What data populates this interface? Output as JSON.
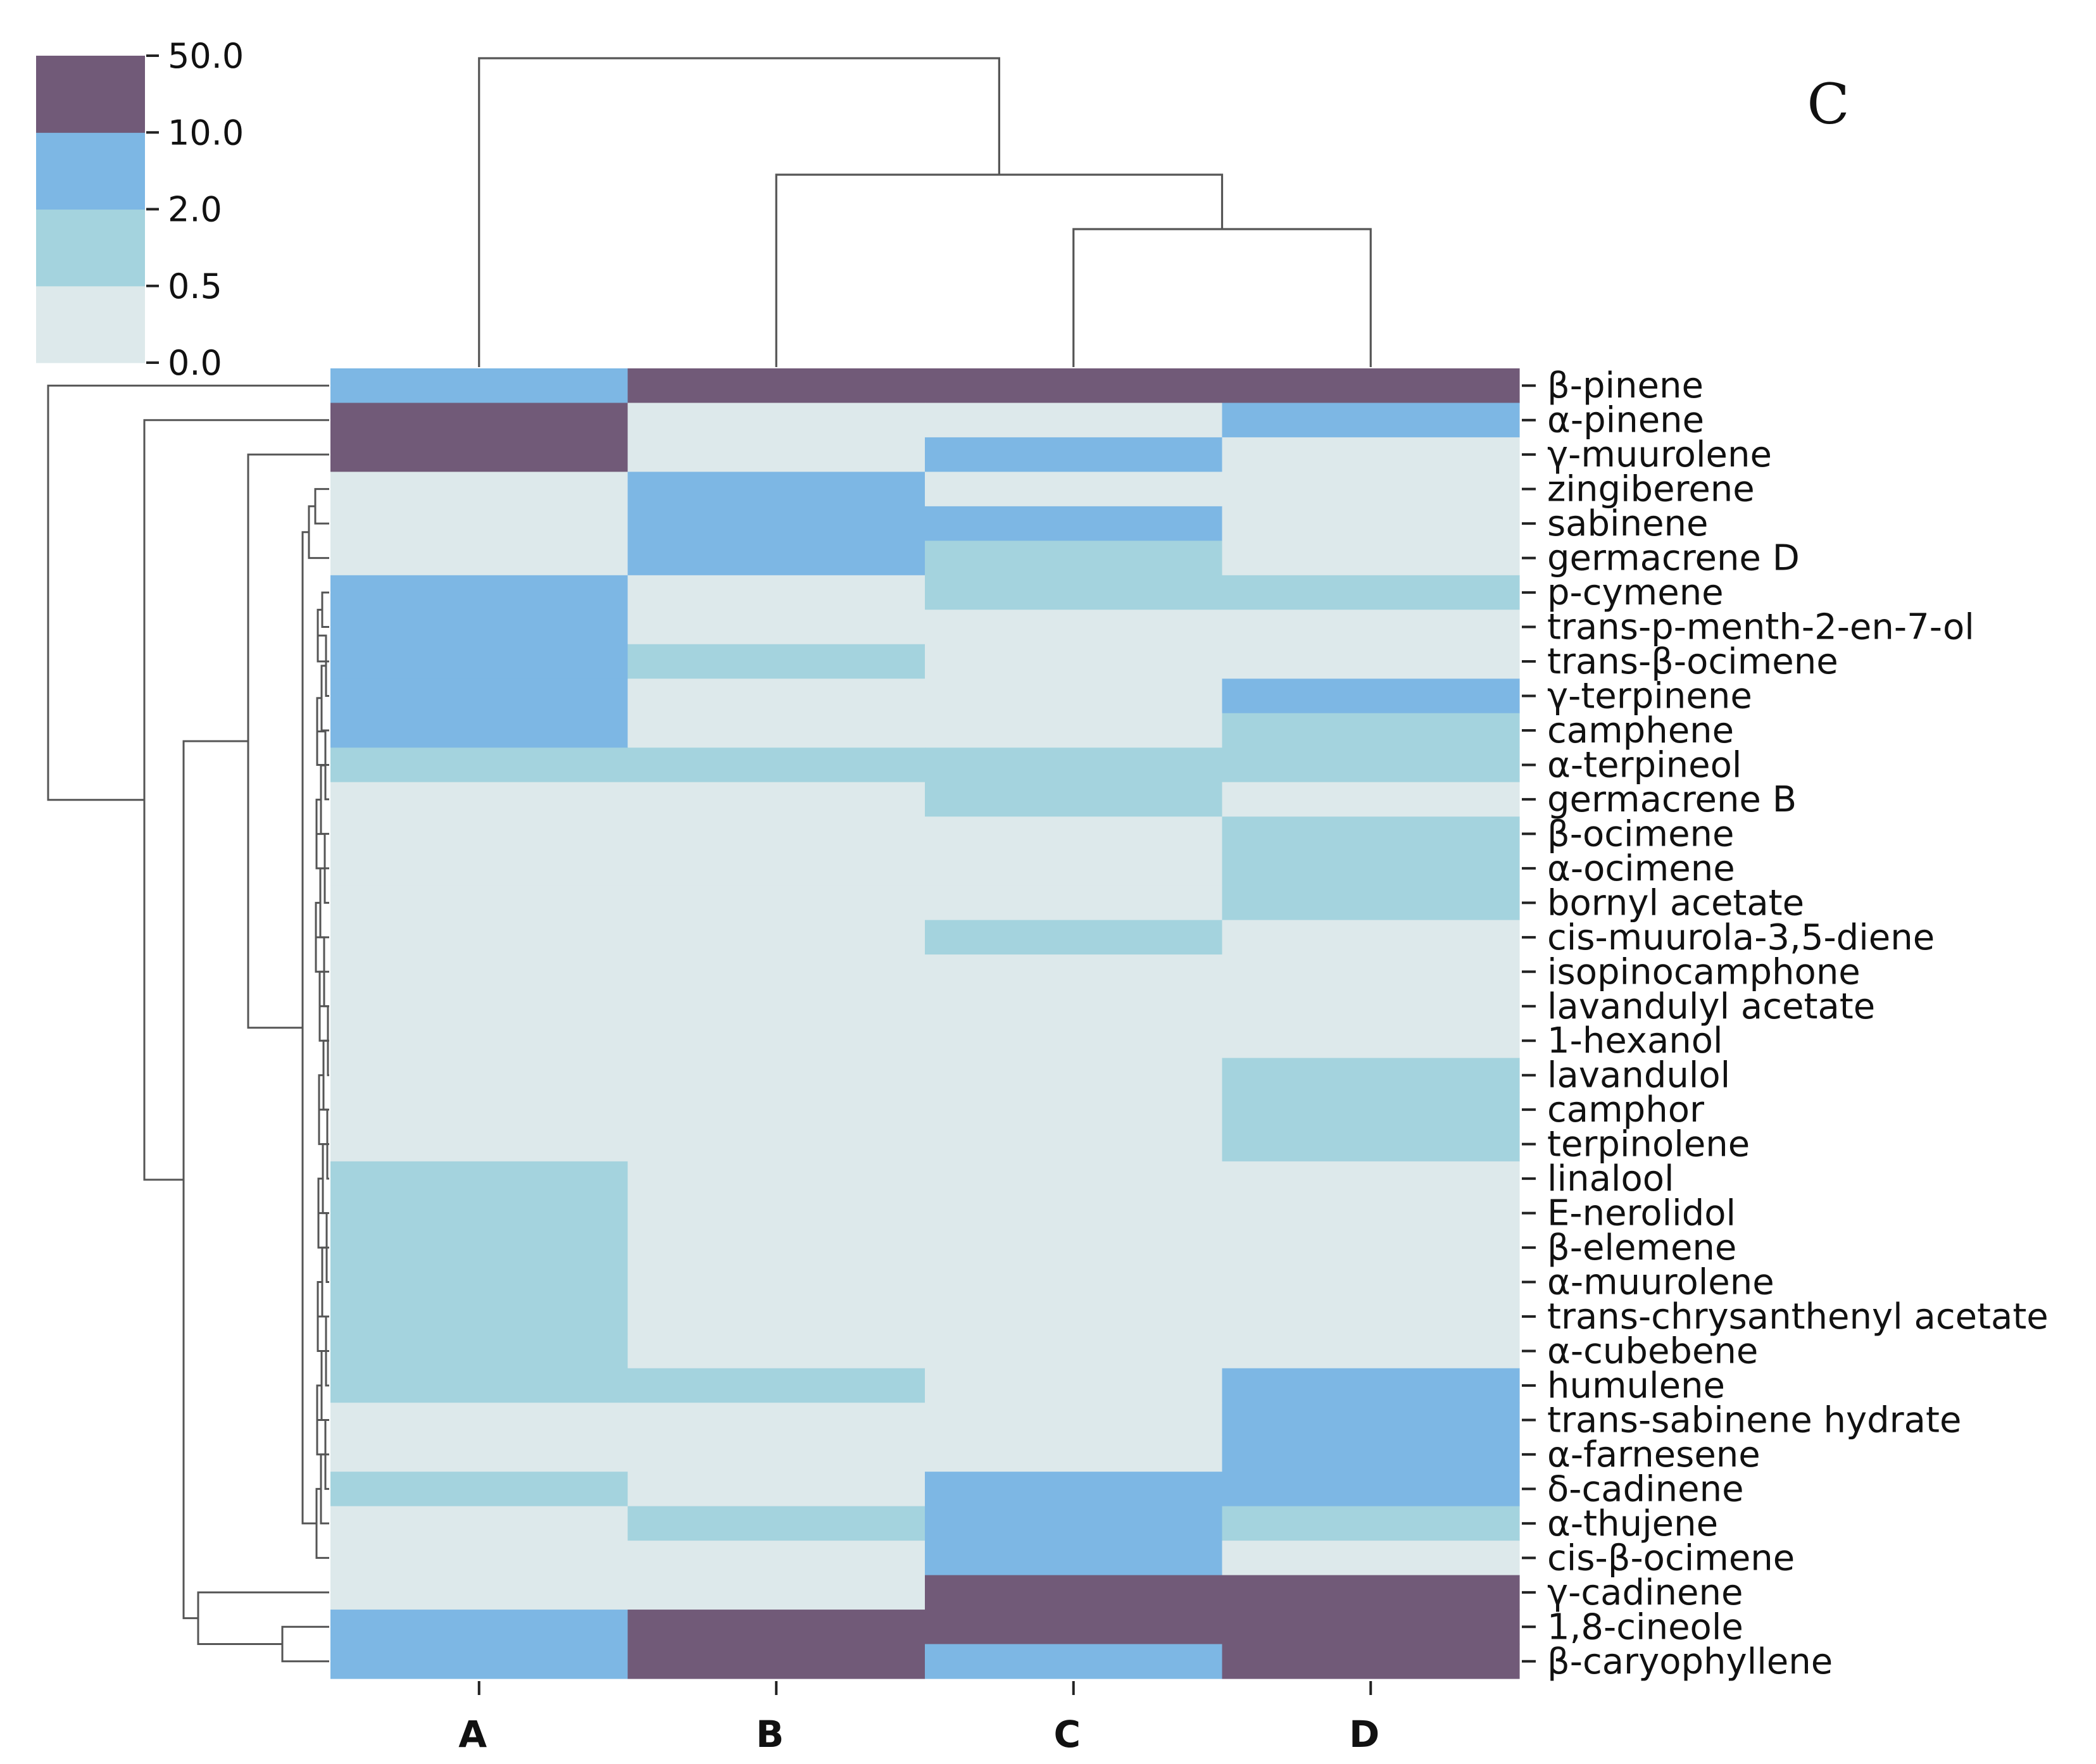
{
  "chart_data": {
    "type": "heatmap",
    "title": "",
    "panel_letter": "C",
    "xlabel": "",
    "ylabel": "",
    "columns": [
      "A",
      "B",
      "C",
      "D"
    ],
    "rows": [
      "β-pinene",
      "α-pinene",
      "γ-muurolene",
      "zingiberene",
      "sabinene",
      "germacrene D",
      "p-cymene",
      "trans-p-menth-2-en-7-ol",
      "trans-β-ocimene",
      "γ-terpinene",
      "camphene",
      "α-terpineol",
      "germacrene B",
      "β-ocimene",
      "α-ocimene",
      "bornyl acetate",
      "cis-muurola-3,5-diene",
      "isopinocamphone",
      "lavandulyl acetate",
      "1-hexanol",
      "lavandulol",
      "camphor",
      "terpinolene",
      "linalool",
      "E-nerolidol",
      "β-elemene",
      "α-muurolene",
      "trans-chrysanthenyl acetate",
      "α-cubebene",
      "humulene",
      "trans-sabinene hydrate",
      "α-farnesene",
      "δ-cadinene",
      "α-thujene",
      "cis-β-ocimene",
      "γ-cadinene",
      "1,8-cineole",
      "β-caryophyllene"
    ],
    "value_bins": [
      "0.0–0.5",
      "0.5–2.0",
      "2.0–10.0",
      "10.0–50.0"
    ],
    "bin_colors": [
      "#dde9eb",
      "#a4d3de",
      "#7db7e4",
      "#715a78"
    ],
    "matrix_bins": [
      [
        2,
        3,
        3,
        3
      ],
      [
        3,
        0,
        0,
        2
      ],
      [
        3,
        0,
        2,
        0
      ],
      [
        0,
        2,
        0,
        0
      ],
      [
        0,
        2,
        2,
        0
      ],
      [
        0,
        2,
        1,
        0
      ],
      [
        2,
        0,
        1,
        1
      ],
      [
        2,
        0,
        0,
        0
      ],
      [
        2,
        1,
        0,
        0
      ],
      [
        2,
        0,
        0,
        2
      ],
      [
        2,
        0,
        0,
        1
      ],
      [
        1,
        1,
        1,
        1
      ],
      [
        0,
        0,
        1,
        0
      ],
      [
        0,
        0,
        0,
        1
      ],
      [
        0,
        0,
        0,
        1
      ],
      [
        0,
        0,
        0,
        1
      ],
      [
        0,
        0,
        1,
        0
      ],
      [
        0,
        0,
        0,
        0
      ],
      [
        0,
        0,
        0,
        0
      ],
      [
        0,
        0,
        0,
        0
      ],
      [
        0,
        0,
        0,
        1
      ],
      [
        0,
        0,
        0,
        1
      ],
      [
        0,
        0,
        0,
        1
      ],
      [
        1,
        0,
        0,
        0
      ],
      [
        1,
        0,
        0,
        0
      ],
      [
        1,
        0,
        0,
        0
      ],
      [
        1,
        0,
        0,
        0
      ],
      [
        1,
        0,
        0,
        0
      ],
      [
        1,
        0,
        0,
        0
      ],
      [
        1,
        1,
        0,
        2
      ],
      [
        0,
        0,
        0,
        2
      ],
      [
        0,
        0,
        0,
        2
      ],
      [
        1,
        0,
        2,
        2
      ],
      [
        0,
        1,
        2,
        1
      ],
      [
        0,
        0,
        2,
        0
      ],
      [
        0,
        0,
        3,
        3
      ],
      [
        2,
        3,
        3,
        3
      ],
      [
        2,
        3,
        2,
        3
      ]
    ],
    "colorbar": {
      "ticks": [
        "0.0",
        "0.5",
        "2.0",
        "10.0",
        "50.0"
      ],
      "colors": [
        "#dde9eb",
        "#a4d3de",
        "#7db7e4",
        "#715a78"
      ]
    },
    "dendrogram_color": "#555555"
  }
}
